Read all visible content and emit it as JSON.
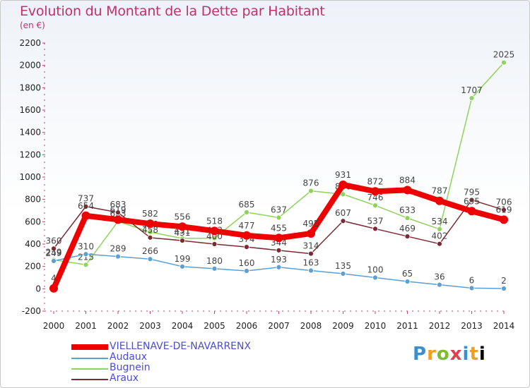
{
  "header": {
    "title": "Evolution du Montant de la Dette par Habitant",
    "subtitle": "(en €)"
  },
  "brand": {
    "text": "Proxiti",
    "letters": [
      "P",
      "r",
      "o",
      "x",
      "i",
      "t",
      "i"
    ]
  },
  "chart_data": {
    "type": "line",
    "x": [
      2000,
      2001,
      2002,
      2003,
      2004,
      2005,
      2006,
      2007,
      2008,
      2009,
      2010,
      2011,
      2012,
      2013,
      2014
    ],
    "ylim": [
      -200,
      2200
    ],
    "yticks": [
      -200,
      0,
      200,
      400,
      600,
      800,
      1000,
      1200,
      1400,
      1600,
      1800,
      2000,
      2200
    ],
    "grid": false,
    "legend_position": "bottom-left",
    "series": [
      {
        "name": "Bugnein",
        "color": "#8fd45a",
        "values": [
          259,
          215,
          603,
          508,
          451,
          453,
          685,
          637,
          876,
          846,
          746,
          633,
          534,
          1707,
          2025
        ],
        "labels": [
          "259",
          "215",
          "603",
          "508",
          "451",
          "453",
          "685",
          "637",
          "876",
          "846",
          "746",
          "633",
          "534",
          "1707",
          "2025"
        ]
      },
      {
        "name": "Araux",
        "color": "#7a2a32",
        "values": [
          360,
          737,
          683,
          458,
          431,
          400,
          374,
          344,
          314,
          607,
          537,
          469,
          402,
          795,
          706
        ],
        "labels": [
          "360",
          "737",
          "683",
          "458",
          "431",
          "400",
          "374",
          "344",
          "314",
          "607",
          "537",
          "469",
          "402",
          "795",
          "706"
        ]
      },
      {
        "name": "Audaux",
        "color": "#5b9fd4",
        "values": [
          249,
          310,
          289,
          266,
          199,
          180,
          160,
          193,
          163,
          135,
          100,
          65,
          36,
          6,
          2
        ],
        "labels": [
          "249",
          "310",
          "289",
          "266",
          "199",
          "180",
          "160",
          "193",
          "163",
          "135",
          "100",
          "65",
          "36",
          "6",
          "2"
        ]
      },
      {
        "name": "VIELLENAVE-DE-NAVARRENX",
        "color": "#ee0000",
        "values": [
          4,
          654,
          619,
          582,
          556,
          518,
          477,
          455,
          495,
          931,
          872,
          884,
          787,
          695,
          619
        ],
        "labels": [
          "4",
          "654",
          "619",
          "582",
          "556",
          "518",
          "477",
          "455",
          "495",
          "931",
          "872",
          "884",
          "787",
          "695",
          "619"
        ]
      }
    ],
    "legend": [
      {
        "name": "VIELLENAVE-DE-NAVARRENX",
        "color": "#ee0000",
        "width": 8
      },
      {
        "name": "Audaux",
        "color": "#5b9fd4",
        "width": 1.5
      },
      {
        "name": "Bugnein",
        "color": "#8fd45a",
        "width": 1.5
      },
      {
        "name": "Araux",
        "color": "#7a2a32",
        "width": 1.5
      }
    ]
  }
}
